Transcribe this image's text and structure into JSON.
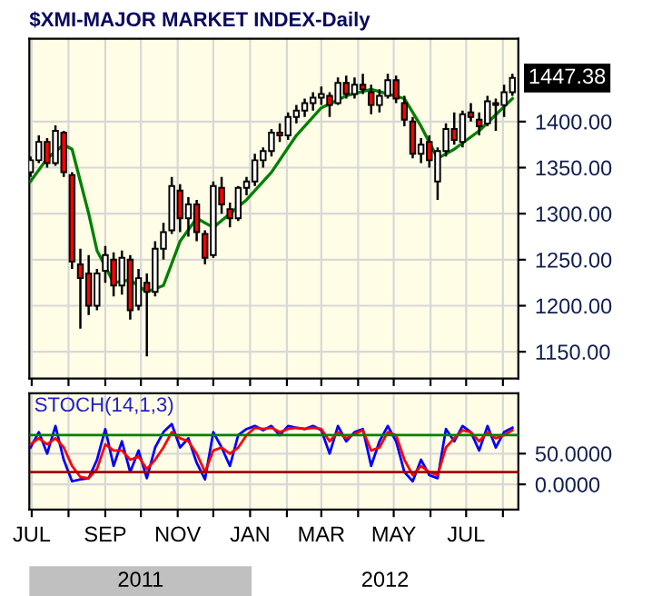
{
  "chart_data": [
    {
      "type": "candlestick",
      "title": "$XMI-MAJOR MARKET INDEX-Daily",
      "x": [
        "2011-06-30",
        "2011-07-07",
        "2011-07-14",
        "2011-07-21",
        "2011-07-28",
        "2011-08-04",
        "2011-08-11",
        "2011-08-18",
        "2011-08-25",
        "2011-09-01",
        "2011-09-08",
        "2011-09-15",
        "2011-09-22",
        "2011-09-29",
        "2011-10-06",
        "2011-10-13",
        "2011-10-20",
        "2011-10-27",
        "2011-11-03",
        "2011-11-10",
        "2011-11-17",
        "2011-11-24",
        "2011-12-01",
        "2011-12-08",
        "2011-12-15",
        "2011-12-22",
        "2011-12-29",
        "2012-01-05",
        "2012-01-12",
        "2012-01-19",
        "2012-01-26",
        "2012-02-02",
        "2012-02-09",
        "2012-02-16",
        "2012-02-23",
        "2012-03-01",
        "2012-03-08",
        "2012-03-15",
        "2012-03-22",
        "2012-03-29",
        "2012-04-05",
        "2012-04-12",
        "2012-04-19",
        "2012-04-26",
        "2012-05-03",
        "2012-05-10",
        "2012-05-17",
        "2012-05-24",
        "2012-05-31",
        "2012-06-07",
        "2012-06-14",
        "2012-06-21",
        "2012-06-28",
        "2012-07-05",
        "2012-07-12",
        "2012-07-19",
        "2012-07-26",
        "2012-08-02",
        "2012-08-09"
      ],
      "ohlc": [
        [
          1345,
          1362,
          1340,
          1358
        ],
        [
          1358,
          1385,
          1355,
          1378
        ],
        [
          1378,
          1382,
          1350,
          1355
        ],
        [
          1355,
          1396,
          1352,
          1390
        ],
        [
          1388,
          1390,
          1340,
          1345
        ],
        [
          1342,
          1345,
          1240,
          1248
        ],
        [
          1245,
          1262,
          1175,
          1230
        ],
        [
          1235,
          1255,
          1190,
          1200
        ],
        [
          1200,
          1240,
          1195,
          1235
        ],
        [
          1238,
          1265,
          1225,
          1255
        ],
        [
          1250,
          1258,
          1210,
          1222
        ],
        [
          1222,
          1260,
          1212,
          1252
        ],
        [
          1250,
          1255,
          1185,
          1195
        ],
        [
          1200,
          1240,
          1195,
          1230
        ],
        [
          1225,
          1235,
          1145,
          1215
        ],
        [
          1215,
          1270,
          1210,
          1262
        ],
        [
          1262,
          1290,
          1250,
          1280
        ],
        [
          1282,
          1340,
          1278,
          1330
        ],
        [
          1325,
          1332,
          1280,
          1295
        ],
        [
          1295,
          1318,
          1275,
          1310
        ],
        [
          1310,
          1315,
          1270,
          1280
        ],
        [
          1278,
          1282,
          1245,
          1252
        ],
        [
          1255,
          1335,
          1252,
          1330
        ],
        [
          1328,
          1340,
          1300,
          1310
        ],
        [
          1305,
          1312,
          1285,
          1295
        ],
        [
          1295,
          1330,
          1292,
          1328
        ],
        [
          1328,
          1340,
          1320,
          1335
        ],
        [
          1335,
          1365,
          1330,
          1358
        ],
        [
          1358,
          1372,
          1350,
          1368
        ],
        [
          1368,
          1392,
          1362,
          1388
        ],
        [
          1388,
          1398,
          1378,
          1385
        ],
        [
          1385,
          1410,
          1380,
          1405
        ],
        [
          1405,
          1418,
          1398,
          1412
        ],
        [
          1412,
          1425,
          1405,
          1420
        ],
        [
          1420,
          1432,
          1412,
          1426
        ],
        [
          1426,
          1438,
          1418,
          1430
        ],
        [
          1428,
          1432,
          1405,
          1418
        ],
        [
          1420,
          1448,
          1418,
          1442
        ],
        [
          1442,
          1450,
          1425,
          1430
        ],
        [
          1430,
          1448,
          1425,
          1440
        ],
        [
          1440,
          1452,
          1430,
          1435
        ],
        [
          1432,
          1440,
          1408,
          1418
        ],
        [
          1418,
          1435,
          1410,
          1428
        ],
        [
          1428,
          1452,
          1425,
          1445
        ],
        [
          1445,
          1450,
          1420,
          1425
        ],
        [
          1420,
          1428,
          1395,
          1402
        ],
        [
          1400,
          1405,
          1360,
          1365
        ],
        [
          1365,
          1382,
          1355,
          1375
        ],
        [
          1378,
          1385,
          1350,
          1358
        ],
        [
          1335,
          1372,
          1315,
          1368
        ],
        [
          1368,
          1398,
          1362,
          1392
        ],
        [
          1392,
          1410,
          1375,
          1380
        ],
        [
          1378,
          1412,
          1372,
          1408
        ],
        [
          1410,
          1420,
          1400,
          1405
        ],
        [
          1402,
          1410,
          1385,
          1395
        ],
        [
          1398,
          1428,
          1395,
          1422
        ],
        [
          1420,
          1425,
          1390,
          1418
        ],
        [
          1418,
          1440,
          1405,
          1432
        ],
        [
          1432,
          1452,
          1428,
          1447.38
        ]
      ],
      "colors": [
        "#ffffff",
        "#ffffff",
        "#ff0000",
        "#ffffff",
        "#ff0000",
        "#ff0000",
        "#ff0000",
        "#ff0000",
        "#ffffff",
        "#ffffff",
        "#ff0000",
        "#ffffff",
        "#ff0000",
        "#ffffff",
        "#ff0000",
        "#ffffff",
        "#ffffff",
        "#ffffff",
        "#ff0000",
        "#ffffff",
        "#ff0000",
        "#ff0000",
        "#ffffff",
        "#ff0000",
        "#ff0000",
        "#ffffff",
        "#ffffff",
        "#ffffff",
        "#ffffff",
        "#ffffff",
        "#ff0000",
        "#ffffff",
        "#ffffff",
        "#ffffff",
        "#ffffff",
        "#ffffff",
        "#ff0000",
        "#ffffff",
        "#ff0000",
        "#ffffff",
        "#ff0000",
        "#ff0000",
        "#ffffff",
        "#ffffff",
        "#ff0000",
        "#ff0000",
        "#ff0000",
        "#ffffff",
        "#ff0000",
        "#ffffff",
        "#ffffff",
        "#ff0000",
        "#ffffff",
        "#ff0000",
        "#ff0000",
        "#ffffff",
        "#ff0000",
        "#ffffff",
        "#ffffff"
      ],
      "series": [
        {
          "type": "line",
          "color": "#008000",
          "x": [
            "2011-06-30",
            "2011-07-14",
            "2011-07-28",
            "2011-08-04",
            "2011-08-18",
            "2011-08-25",
            "2011-09-08",
            "2011-09-22",
            "2011-10-06",
            "2011-10-20",
            "2011-11-03",
            "2011-11-17",
            "2011-12-01",
            "2011-12-15",
            "2011-12-29",
            "2012-01-19",
            "2012-02-09",
            "2012-03-01",
            "2012-03-22",
            "2012-04-12",
            "2012-04-26",
            "2012-05-10",
            "2012-05-24",
            "2012-06-07",
            "2012-06-21",
            "2012-07-12",
            "2012-08-09"
          ],
          "values": [
            1335,
            1360,
            1375,
            1370,
            1300,
            1260,
            1225,
            1228,
            1215,
            1222,
            1270,
            1295,
            1285,
            1300,
            1315,
            1345,
            1385,
            1415,
            1428,
            1435,
            1430,
            1425,
            1395,
            1360,
            1370,
            1390,
            1425
          ]
        }
      ],
      "annotations": [
        "1447.38"
      ],
      "xlim": [
        "2011-06-29",
        "2012-08-14"
      ],
      "ylim": [
        1121,
        1490
      ],
      "yticks": [
        {
          "value": 1150,
          "label": "1150.00"
        },
        {
          "value": 1200,
          "label": "1200.00"
        },
        {
          "value": 1250,
          "label": "1250.00"
        },
        {
          "value": 1300,
          "label": "1300.00"
        },
        {
          "value": 1350,
          "label": "1350.00"
        },
        {
          "value": 1400,
          "label": "1400.00"
        }
      ],
      "xticks": [
        {
          "value": "2011-07-01",
          "label": null
        },
        {
          "value": "2011-08-01",
          "label": null
        },
        {
          "value": "2011-09-01",
          "label": null
        },
        {
          "value": "2011-10-01",
          "label": null
        },
        {
          "value": "2011-11-01",
          "label": null
        },
        {
          "value": "2011-12-01",
          "label": null
        },
        {
          "value": "2012-01-01",
          "label": null
        },
        {
          "value": "2012-02-01",
          "label": null
        },
        {
          "value": "2012-03-01",
          "label": null
        },
        {
          "value": "2012-04-01",
          "label": null
        },
        {
          "value": "2012-05-01",
          "label": null
        },
        {
          "value": "2012-06-01",
          "label": null
        },
        {
          "value": "2012-07-01",
          "label": null
        },
        {
          "value": "2012-08-01",
          "label": null
        }
      ],
      "tick_labels": "y",
      "grid": true
    },
    {
      "type": "line",
      "title": "STOCH(14,1,3)",
      "x": [
        "2011-06-30",
        "2011-07-07",
        "2011-07-14",
        "2011-07-21",
        "2011-07-28",
        "2011-08-04",
        "2011-08-11",
        "2011-08-18",
        "2011-08-25",
        "2011-09-01",
        "2011-09-08",
        "2011-09-15",
        "2011-09-22",
        "2011-09-29",
        "2011-10-06",
        "2011-10-13",
        "2011-10-20",
        "2011-10-27",
        "2011-11-03",
        "2011-11-10",
        "2011-11-17",
        "2011-11-24",
        "2011-12-01",
        "2011-12-08",
        "2011-12-15",
        "2011-12-22",
        "2011-12-29",
        "2012-01-05",
        "2012-01-12",
        "2012-01-19",
        "2012-01-26",
        "2012-02-02",
        "2012-02-09",
        "2012-02-16",
        "2012-02-23",
        "2012-03-01",
        "2012-03-08",
        "2012-03-15",
        "2012-03-22",
        "2012-03-29",
        "2012-04-05",
        "2012-04-12",
        "2012-04-19",
        "2012-04-26",
        "2012-05-03",
        "2012-05-10",
        "2012-05-17",
        "2012-05-24",
        "2012-05-31",
        "2012-06-07",
        "2012-06-14",
        "2012-06-21",
        "2012-06-28",
        "2012-07-05",
        "2012-07-12",
        "2012-07-19",
        "2012-07-26",
        "2012-08-02",
        "2012-08-09"
      ],
      "series": [
        {
          "color": "#0000ff",
          "values": [
            60,
            85,
            50,
            95,
            40,
            5,
            8,
            10,
            40,
            90,
            30,
            70,
            20,
            55,
            10,
            60,
            85,
            98,
            60,
            75,
            35,
            8,
            85,
            60,
            30,
            80,
            90,
            95,
            88,
            95,
            80,
            95,
            92,
            90,
            95,
            88,
            50,
            95,
            70,
            85,
            90,
            30,
            70,
            95,
            70,
            20,
            5,
            40,
            15,
            10,
            90,
            70,
            95,
            85,
            55,
            95,
            60,
            85,
            92
          ]
        },
        {
          "color": "#ff0000",
          "values": [
            65,
            75,
            65,
            75,
            60,
            30,
            12,
            10,
            25,
            65,
            55,
            55,
            40,
            45,
            25,
            40,
            60,
            85,
            75,
            70,
            50,
            20,
            55,
            60,
            50,
            60,
            80,
            92,
            90,
            92,
            85,
            90,
            92,
            90,
            92,
            90,
            70,
            85,
            75,
            82,
            88,
            55,
            60,
            85,
            80,
            40,
            15,
            30,
            20,
            15,
            60,
            75,
            88,
            85,
            70,
            85,
            75,
            80,
            88
          ]
        }
      ],
      "ref_lines": [
        {
          "axis": "y",
          "value": 80,
          "color": "#008000"
        },
        {
          "axis": "y",
          "value": 20,
          "color": "#a00000"
        }
      ],
      "xlim": [
        "2011-06-29",
        "2012-08-14"
      ],
      "ylim": [
        -41,
        148
      ],
      "yticks": [
        {
          "value": 0,
          "label": "0.0000"
        },
        {
          "value": 50,
          "label": "50.0000"
        }
      ],
      "xticks": [
        {
          "value": "2011-07-01",
          "label": "JUL"
        },
        {
          "value": "2011-08-01",
          "label": null
        },
        {
          "value": "2011-09-01",
          "label": "SEP"
        },
        {
          "value": "2011-10-01",
          "label": null
        },
        {
          "value": "2011-11-01",
          "label": "NOV"
        },
        {
          "value": "2011-12-01",
          "label": null
        },
        {
          "value": "2012-01-01",
          "label": "JAN"
        },
        {
          "value": "2012-02-01",
          "label": null
        },
        {
          "value": "2012-03-01",
          "label": "MAR"
        },
        {
          "value": "2012-04-01",
          "label": null
        },
        {
          "value": "2012-05-01",
          "label": "MAY"
        },
        {
          "value": "2012-06-01",
          "label": null
        },
        {
          "value": "2012-07-01",
          "label": "JUL"
        },
        {
          "value": "2012-08-01",
          "label": null
        }
      ],
      "annotations": [
        "2011",
        "2012"
      ],
      "grid": true
    }
  ]
}
